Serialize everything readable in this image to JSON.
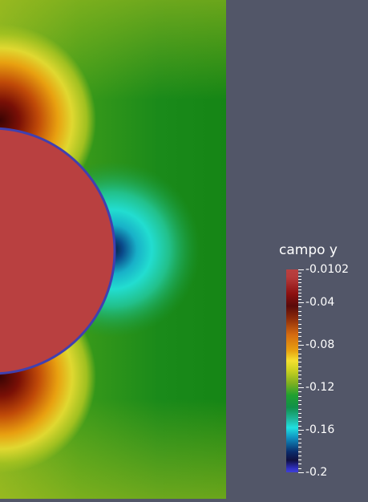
{
  "legend": {
    "title": "campo y",
    "ticks": [
      "-0.0102",
      "-0.04",
      "-0.08",
      "-0.12",
      "-0.16",
      "-0.2"
    ]
  },
  "colors": {
    "background": "#525668",
    "sphere": "#b94040",
    "sphere_outline": "#4040b0",
    "field_green": "#1a8a1a",
    "field_cyan": "#20d8d0"
  }
}
